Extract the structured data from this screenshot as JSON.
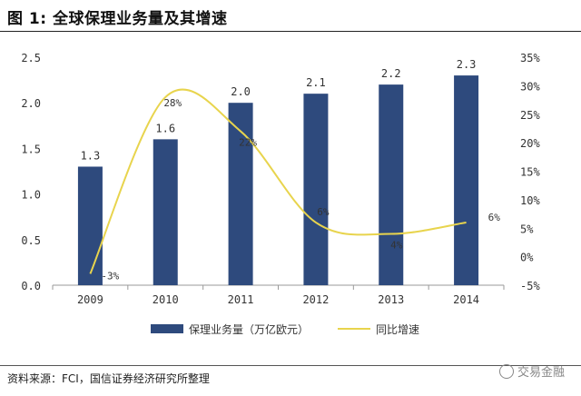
{
  "header": {
    "title": "图 1: 全球保理业务量及其增速"
  },
  "footer": {
    "source": "资料来源：FCI，国信证券经济研究所整理",
    "watermark": "交易金融"
  },
  "colors": {
    "bar": "#2e4a7d",
    "line": "#e8d44d"
  },
  "chart_data": {
    "type": "bar",
    "title": "全球保理业务量及其增速",
    "categories": [
      "2009",
      "2010",
      "2011",
      "2012",
      "2013",
      "2014"
    ],
    "series": [
      {
        "name": "保理业务量（万亿欧元）",
        "type": "bar",
        "axis": "left",
        "values": [
          1.3,
          1.6,
          2.0,
          2.1,
          2.2,
          2.3
        ],
        "labels": [
          "1.3",
          "1.6",
          "2.0",
          "2.1",
          "2.2",
          "2.3"
        ]
      },
      {
        "name": "同比增速",
        "type": "line",
        "axis": "right",
        "values": [
          -3,
          28,
          22,
          6,
          4,
          6
        ],
        "labels": [
          "-3%",
          "28%",
          "22%",
          "6%",
          "4%",
          "6%"
        ]
      }
    ],
    "y_left": {
      "min": 0,
      "max": 2.5,
      "ticks": [
        "0.0",
        "0.5",
        "1.0",
        "1.5",
        "2.0",
        "2.5"
      ]
    },
    "y_right": {
      "min": -5,
      "max": 35,
      "ticks": [
        "-5%",
        "0%",
        "5%",
        "10%",
        "15%",
        "20%",
        "25%",
        "30%",
        "35%"
      ]
    },
    "legend": [
      "保理业务量（万亿欧元）",
      "同比增速"
    ],
    "legend_position": "bottom"
  }
}
